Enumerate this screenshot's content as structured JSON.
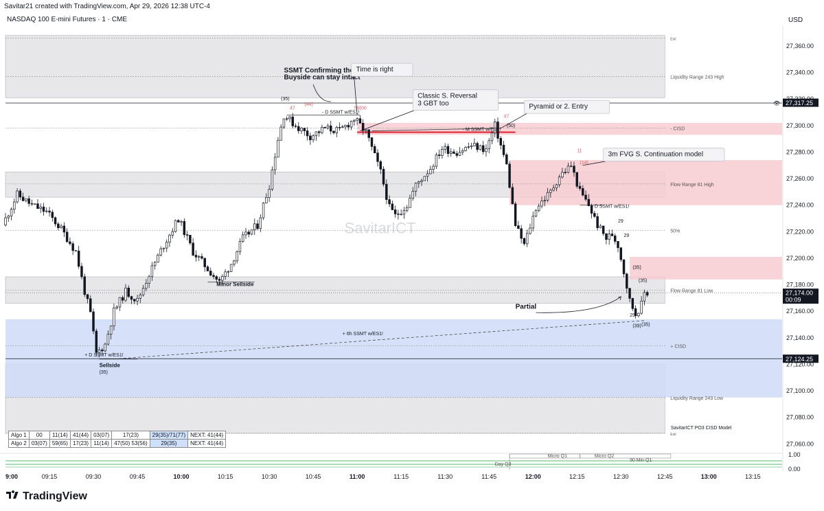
{
  "header": {
    "created_by": "Savitar21 created with TradingView.com, Apr 29, 2026 12:38 UTC-4",
    "symbol": "NASDAQ 100 E-mini Futures · 1 · CME",
    "currency": "USD"
  },
  "watermark": "SavitarICT",
  "footer": {
    "brand": "TradingView"
  },
  "chart_data": {
    "type": "candlestick",
    "interval": "1 minute",
    "y_range": [
      27055,
      27375
    ],
    "x_range": [
      "09:00",
      "13:25"
    ],
    "y_ticks": [
      "27,360.00",
      "27,340.00",
      "27,320.00",
      "27,300.00",
      "27,280.00",
      "27,260.00",
      "27,240.00",
      "27,220.00",
      "27,200.00",
      "27,180.00",
      "27,160.00",
      "27,140.00",
      "27,120.00",
      "27,100.00",
      "27,080.00",
      "27,060.00"
    ],
    "x_ticks": [
      {
        "label": "9:00",
        "t": "09:00",
        "bold": true
      },
      {
        "label": "09:15",
        "t": "09:15"
      },
      {
        "label": "09:30",
        "t": "09:30"
      },
      {
        "label": "09:45",
        "t": "09:45"
      },
      {
        "label": "10:00",
        "t": "10:00",
        "bold": true
      },
      {
        "label": "10:15",
        "t": "10:15"
      },
      {
        "label": "10:30",
        "t": "10:30"
      },
      {
        "label": "10:45",
        "t": "10:45"
      },
      {
        "label": "11:00",
        "t": "11:00",
        "bold": true
      },
      {
        "label": "11:15",
        "t": "11:15"
      },
      {
        "label": "11:30",
        "t": "11:30"
      },
      {
        "label": "11:45",
        "t": "11:45"
      },
      {
        "label": "12:00",
        "t": "12:00",
        "bold": true
      },
      {
        "label": "12:15",
        "t": "12:15"
      },
      {
        "label": "12:30",
        "t": "12:30"
      },
      {
        "label": "12:45",
        "t": "12:45"
      },
      {
        "label": "13:00",
        "t": "13:00",
        "bold": true
      },
      {
        "label": "13:15",
        "t": "13:15"
      }
    ],
    "price_path": [
      [
        "09:00",
        27225
      ],
      [
        "09:05",
        27248
      ],
      [
        "09:10",
        27240
      ],
      [
        "09:15",
        27235
      ],
      [
        "09:20",
        27222
      ],
      [
        "09:25",
        27205
      ],
      [
        "09:28",
        27175
      ],
      [
        "09:30",
        27158
      ],
      [
        "09:32",
        27128
      ],
      [
        "09:35",
        27135
      ],
      [
        "09:38",
        27160
      ],
      [
        "09:42",
        27175
      ],
      [
        "09:46",
        27168
      ],
      [
        "09:50",
        27188
      ],
      [
        "09:55",
        27210
      ],
      [
        "10:00",
        27230
      ],
      [
        "10:05",
        27205
      ],
      [
        "10:10",
        27192
      ],
      [
        "10:14",
        27182
      ],
      [
        "10:18",
        27196
      ],
      [
        "10:22",
        27215
      ],
      [
        "10:27",
        27225
      ],
      [
        "10:31",
        27255
      ],
      [
        "10:34",
        27290
      ],
      [
        "10:36",
        27308
      ],
      [
        "10:40",
        27300
      ],
      [
        "10:45",
        27292
      ],
      [
        "10:50",
        27298
      ],
      [
        "10:55",
        27296
      ],
      [
        "11:00",
        27305
      ],
      [
        "11:04",
        27295
      ],
      [
        "11:09",
        27265
      ],
      [
        "11:12",
        27238
      ],
      [
        "11:14",
        27232
      ],
      [
        "11:18",
        27240
      ],
      [
        "11:21",
        27255
      ],
      [
        "11:26",
        27268
      ],
      [
        "11:30",
        27283
      ],
      [
        "11:35",
        27280
      ],
      [
        "11:40",
        27285
      ],
      [
        "11:45",
        27282
      ],
      [
        "11:48",
        27300
      ],
      [
        "11:52",
        27270
      ],
      [
        "11:55",
        27225
      ],
      [
        "11:58",
        27210
      ],
      [
        "12:02",
        27238
      ],
      [
        "12:07",
        27250
      ],
      [
        "12:10",
        27262
      ],
      [
        "12:14",
        27270
      ],
      [
        "12:17",
        27250
      ],
      [
        "12:20",
        27240
      ],
      [
        "12:23",
        27225
      ],
      [
        "12:26",
        27215
      ],
      [
        "12:28",
        27218
      ],
      [
        "12:30",
        27210
      ],
      [
        "12:32",
        27190
      ],
      [
        "12:34",
        27168
      ],
      [
        "12:36",
        27158
      ],
      [
        "12:38",
        27165
      ],
      [
        "12:39",
        27174
      ]
    ],
    "last_price": "27,174.00",
    "countdown": "00:09",
    "price_labels": [
      {
        "text": "27,317.25",
        "y": 27317.25,
        "style": "dark",
        "eye": true
      },
      {
        "text": "27,124.25",
        "y": 27124.25,
        "style": "dark"
      }
    ],
    "zones": [
      {
        "name": "liquidity-range-243-top",
        "y1": 27321,
        "y2": 27368,
        "t1": "09:00",
        "t2": "12:45",
        "color": "#e3e3e6"
      },
      {
        "name": "flow-range-81-high",
        "y1": 27246,
        "y2": 27265,
        "t1": "09:00",
        "t2": "12:45",
        "color": "#e3e3e6"
      },
      {
        "name": "flow-range-81-low",
        "y1": 27166,
        "y2": 27186,
        "t1": "09:00",
        "t2": "12:45",
        "color": "#e3e3e6"
      },
      {
        "name": "liquidity-range-243-bottom",
        "y1": 27068,
        "y2": 27120,
        "t1": "09:00",
        "t2": "12:45",
        "color": "#e3e3e6"
      },
      {
        "name": "bullish-cisd-zone",
        "y1": 27095,
        "y2": 27154,
        "t1": "09:00",
        "t2": "13:25",
        "color": "#cfdcf8"
      },
      {
        "name": "bearish-cisd-zone-1",
        "y1": 27293,
        "y2": 27302,
        "t1": "11:00",
        "t2": "13:25",
        "color": "#f7cbd0"
      },
      {
        "name": "bearish-fvg-zone",
        "y1": 27240,
        "y2": 27274,
        "t1": "11:52",
        "t2": "13:25",
        "color": "#f7cbd0"
      },
      {
        "name": "bearish-fvg-zone-2",
        "y1": 27184,
        "y2": 27201,
        "t1": "12:33",
        "t2": "13:25",
        "color": "#f7cbd0"
      }
    ],
    "levels": [
      {
        "name": "level-exit-top",
        "y": 27366,
        "dash": true,
        "label": "Exit",
        "small": true
      },
      {
        "name": "level-liquidity-high",
        "y": 27337,
        "dash": true,
        "label": "Liquidity Range 243 High"
      },
      {
        "name": "level-cisd-minus",
        "y": 27298,
        "dash": true,
        "label": "- CISD"
      },
      {
        "name": "level-flow-high",
        "y": 27256,
        "dash": true,
        "label": "Flow Range 81 High"
      },
      {
        "name": "level-50pct",
        "y": 27221,
        "dash": true,
        "label": "50%"
      },
      {
        "name": "level-flow-low",
        "y": 27176,
        "dash": true,
        "label": "Flow Range 81 Low"
      },
      {
        "name": "level-cisd-plus",
        "y": 27134,
        "dash": true,
        "label": "+ CISD"
      },
      {
        "name": "level-liquidity-low",
        "y": 27095,
        "dash": true,
        "label": "Liquidity Range 243 Low"
      },
      {
        "name": "level-exit-bottom",
        "y": 27068,
        "dash": true,
        "label": "Exit",
        "small": true
      }
    ],
    "callouts": [
      {
        "name": "callout-time-is-right",
        "lines": [
          "Time is right"
        ],
        "y": 27347,
        "t": "10:58",
        "arrow_to": [
          "11:00",
          27308
        ]
      },
      {
        "name": "callout-classic-reversal",
        "lines": [
          "Classic S. Reversal",
          "3 GBT too"
        ],
        "y": 27327,
        "t": "11:19",
        "arrow_to": [
          "11:01",
          27296
        ]
      },
      {
        "name": "callout-pyramid",
        "lines": [
          "Pyramid or 2. Entry"
        ],
        "y": 27319,
        "t": "11:57",
        "arrow_to": [
          "11:49",
          27298
        ]
      },
      {
        "name": "callout-fvg-continuation",
        "lines": [
          "3m FVG S. Continuation model"
        ],
        "y": 27283,
        "t": "12:24",
        "arrow_to": [
          "12:17",
          27270
        ]
      }
    ],
    "texts": [
      {
        "name": "ssmt-reversal-title",
        "text": "SSMT Confirming the Reversal",
        "t": "10:35",
        "y": 27340,
        "bold": true,
        "size": 10
      },
      {
        "name": "ssmt-buyside-title",
        "text": "Buyside can stay intact",
        "t": "10:35",
        "y": 27335,
        "bold": true,
        "size": 10
      },
      {
        "name": "minor-sellside-label",
        "text": "Minor Sellside",
        "t": "10:12",
        "y": 27179,
        "bold": true,
        "size": 8
      },
      {
        "name": "sellside-label",
        "text": "Sellside",
        "t": "09:32",
        "y": 27118,
        "bold": true,
        "size": 8
      },
      {
        "name": "partial-label",
        "text": "Partial",
        "t": "11:54",
        "y": 27162,
        "bold": true,
        "size": 10
      },
      {
        "name": "ssmt-d-1",
        "text": "- D SSMT w/ES1!",
        "t": "10:48",
        "y": 27309,
        "size": 7
      },
      {
        "name": "ssmt-m",
        "text": "- M SSMT w/ES1!",
        "t": "11:36",
        "y": 27296,
        "size": 7
      },
      {
        "name": "ssmt-d-2",
        "text": "- D SSMT w/ES1!",
        "t": "12:20",
        "y": 27238,
        "size": 7
      },
      {
        "name": "ssmt-6h",
        "text": "+ 6h SSMT w/ES1!",
        "t": "10:55",
        "y": 27142,
        "size": 7
      },
      {
        "name": "ssmt-d-plus",
        "text": "+ D SSMT w/ES1!",
        "t": "09:27",
        "y": 27126,
        "size": 7
      },
      {
        "name": "lbl-35-a",
        "text": "(35)",
        "t": "10:34",
        "y": 27319,
        "size": 7
      },
      {
        "name": "lbl-47-a",
        "text": "47",
        "t": "10:37",
        "y": 27312,
        "size": 7,
        "color": "#e05c6b"
      },
      {
        "name": "lbl-44",
        "text": "(44)",
        "t": "10:42",
        "y": 27315,
        "size": 7,
        "color": "#e05c6b"
      },
      {
        "name": "lbl-59",
        "text": "59(00",
        "t": "10:59",
        "y": 27312,
        "size": 7,
        "color": "#e05c6b"
      },
      {
        "name": "lbl-47-b",
        "text": "47",
        "t": "11:50",
        "y": 27306,
        "size": 7,
        "color": "#e05c6b"
      },
      {
        "name": "lbl-50",
        "text": "(50)",
        "t": "11:51",
        "y": 27299,
        "size": 7
      },
      {
        "name": "lbl-11",
        "text": "11",
        "t": "12:15",
        "y": 27280,
        "size": 7,
        "color": "#e05c6b"
      },
      {
        "name": "lbl-14",
        "text": "(14)",
        "t": "12:16",
        "y": 27271,
        "size": 7,
        "color": "#e05c6b"
      },
      {
        "name": "lbl-29-a",
        "text": "29",
        "t": "12:29",
        "y": 27227,
        "size": 7
      },
      {
        "name": "lbl-29-b",
        "text": "29",
        "t": "12:31",
        "y": 27216,
        "size": 7
      },
      {
        "name": "lbl-35-b",
        "text": "(35)",
        "t": "12:34",
        "y": 27192,
        "size": 7
      },
      {
        "name": "lbl-35-c",
        "text": "(35)",
        "t": "12:36",
        "y": 27182,
        "size": 7
      },
      {
        "name": "lbl-29-c",
        "text": "29",
        "t": "12:33",
        "y": 27156,
        "size": 7
      },
      {
        "name": "lbl-39",
        "text": "(39)",
        "t": "12:34",
        "y": 27148,
        "size": 7
      },
      {
        "name": "lbl-35-d",
        "text": "(35)",
        "t": "12:37",
        "y": 27149,
        "size": 7
      },
      {
        "name": "lbl-35-e",
        "text": "(35)",
        "t": "09:32",
        "y": 27113,
        "size": 7
      },
      {
        "name": "model-name",
        "text": "SavitarICT PO3 CISD Model",
        "t": "12:47",
        "y": 27071,
        "size": 7
      }
    ],
    "lines": [
      {
        "name": "ssmt-d-line",
        "t1": "10:36",
        "y1": 27308,
        "t2": "11:01",
        "y2": 27308,
        "color": "#333333",
        "width": 0.8
      },
      {
        "name": "cisd-red-line",
        "t1": "11:00",
        "y1": 27295,
        "t2": "11:54",
        "y2": 27295,
        "color": "#e02030",
        "width": 2
      },
      {
        "name": "ssmt-m-line",
        "t1": "11:05",
        "y1": 27296,
        "t2": "11:49",
        "y2": 27298,
        "color": "#333333",
        "width": 0.8
      },
      {
        "name": "ssmt-d-line-2",
        "t1": "12:16",
        "y1": 27240,
        "t2": "12:24",
        "y2": 27240,
        "color": "#333333",
        "width": 0.8
      },
      {
        "name": "minor-sellside-line",
        "t1": "10:09",
        "y1": 27182,
        "t2": "10:25",
        "y2": 27182,
        "color": "#333333",
        "width": 0.8
      },
      {
        "name": "sellside-line",
        "t1": "09:32",
        "y1": 27124,
        "t2": "09:45",
        "y2": 27124,
        "color": "#333333",
        "width": 0.8
      },
      {
        "name": "red-top-line",
        "t1": "09:00",
        "y1": 27317,
        "t2": "13:25",
        "y2": 27317,
        "color": "#131722",
        "width": 0.8
      },
      {
        "name": "low-line",
        "t1": "09:00",
        "y1": 27124.25,
        "t2": "13:25",
        "y2": 27124.25,
        "color": "#131722",
        "width": 0.8
      }
    ],
    "bottom_pane": {
      "tick_top": "1.00",
      "tick_bottom": "0.00",
      "labels": [
        {
          "name": "micro-q1",
          "text": "Micro Q1",
          "t": "12:05"
        },
        {
          "name": "micro-q2",
          "text": "Micro Q2",
          "t": "12:21"
        },
        {
          "name": "min90-q1",
          "text": "90 Min Q1",
          "t": "12:33"
        },
        {
          "name": "day-q3",
          "text": "Day Q3",
          "t": "11:47"
        }
      ]
    },
    "algo_table": [
      [
        "Algo 1",
        "00",
        "11(14)",
        "41(44)",
        "03(07)",
        "17(23)",
        "29(35)/71(77)",
        "NEXT: 41(44)"
      ],
      [
        "Algo 2",
        "03(07)",
        "59(65)",
        "17(23)",
        "11(14)",
        "47(50) 53(56)",
        "29(35)",
        "NEXT: 41(44)"
      ]
    ]
  }
}
